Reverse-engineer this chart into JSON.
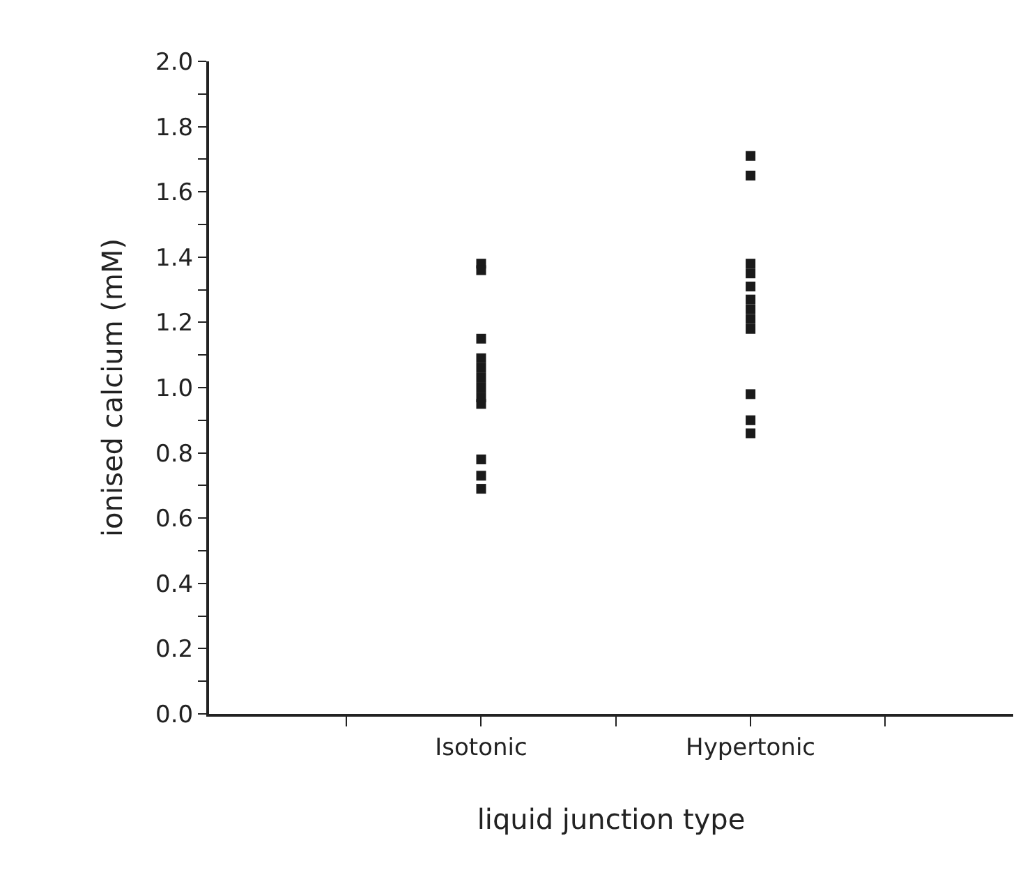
{
  "chart_data": {
    "type": "scatter",
    "xlabel": "liquid junction type",
    "ylabel": "ionised calcium (mM)",
    "categories": [
      null,
      "Isotonic",
      null,
      "Hypertonic",
      null
    ],
    "series": [
      {
        "color": "#1a1a1a",
        "x": [
          "Isotonic",
          "Isotonic",
          "Isotonic",
          "Isotonic",
          "Isotonic",
          "Isotonic",
          "Isotonic",
          "Isotonic",
          "Isotonic",
          "Isotonic",
          "Isotonic",
          "Isotonic"
        ],
        "values": [
          1.38,
          1.36,
          1.15,
          1.09,
          1.06,
          1.03,
          1.0,
          0.97,
          0.95,
          0.78,
          0.73,
          0.69
        ]
      },
      {
        "color": "#1a1a1a",
        "x": [
          "Hypertonic",
          "Hypertonic",
          "Hypertonic",
          "Hypertonic",
          "Hypertonic",
          "Hypertonic",
          "Hypertonic",
          "Hypertonic",
          "Hypertonic",
          "Hypertonic",
          "Hypertonic",
          "Hypertonic"
        ],
        "values": [
          1.71,
          1.65,
          1.38,
          1.35,
          1.31,
          1.27,
          1.24,
          1.21,
          1.18,
          0.98,
          0.9,
          0.86
        ]
      }
    ],
    "ylim": [
      0,
      2.0
    ],
    "yticks": [
      "0.0",
      {
        "value": 0.1,
        "label": null
      },
      {
        "value": 0.2,
        "label": "0.2"
      },
      {
        "value": 0.3,
        "label": null
      },
      {
        "value": 0.4,
        "label": "0.4"
      },
      {
        "value": 0.5,
        "label": null
      },
      {
        "value": 0.6,
        "label": "0.6"
      },
      {
        "value": 0.7,
        "label": null
      },
      {
        "value": 0.8,
        "label": "0.8"
      },
      {
        "value": 0.9,
        "label": null
      },
      {
        "value": 1.0,
        "label": "1.0"
      },
      {
        "value": 1.1,
        "label": null
      },
      {
        "value": 1.2,
        "label": "1.2"
      },
      {
        "value": 1.3,
        "label": null
      },
      {
        "value": 1.4,
        "label": "1.4"
      },
      {
        "value": 1.5,
        "label": null
      },
      {
        "value": 1.6,
        "label": "1.6"
      },
      {
        "value": 1.7,
        "label": null
      },
      {
        "value": 1.8,
        "label": "1.8"
      },
      {
        "value": 1.9,
        "label": null
      },
      {
        "value": 2.0,
        "label": "2.0"
      }
    ],
    "marker": "square"
  }
}
